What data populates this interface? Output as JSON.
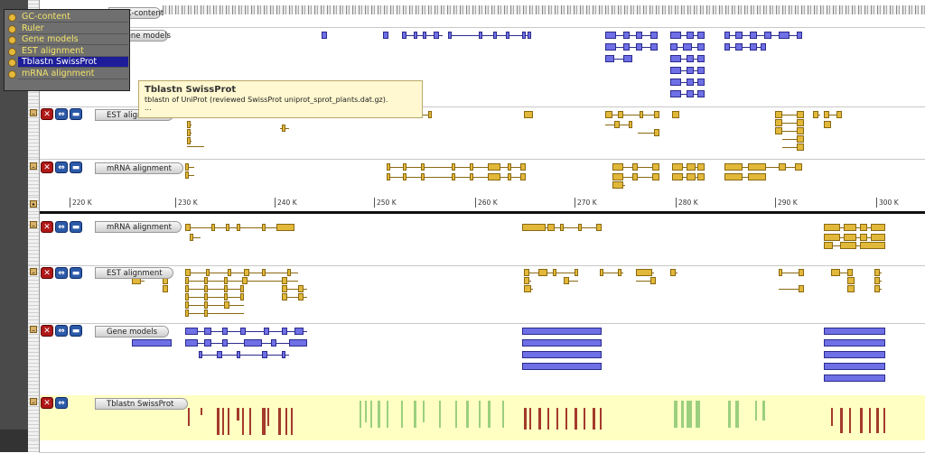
{
  "overlay_menu": {
    "items": [
      {
        "label": "GC-content",
        "active": false
      },
      {
        "label": "Ruler",
        "active": false
      },
      {
        "label": "Gene models",
        "active": false
      },
      {
        "label": "EST alignment",
        "active": false
      },
      {
        "label": "Tblastn SwissProt",
        "active": true
      },
      {
        "label": "mRNA alignment",
        "active": false
      }
    ]
  },
  "tooltip": {
    "title": "Tblastn SwissProt",
    "description": "tblastn of UniProt (reviewed SwissProt uniprot_sprot_plants.dat.gz).",
    "more": "..."
  },
  "top_tracks": {
    "gc_label": "GC-content",
    "gene_models_label": "Gene models",
    "est_label": "EST alignment",
    "mrna_label": "mRNA alignment"
  },
  "ruler": {
    "ticks": [
      "220 K",
      "230 K",
      "240 K",
      "250 K",
      "260 K",
      "270 K",
      "280 K",
      "290 K",
      "300 K"
    ]
  },
  "bottom_tracks": {
    "mrna_label": "mRNA alignment",
    "est_label": "EST alignment",
    "gene_models_label": "Gene models",
    "tblastn_label": "Tblastn SwissProt"
  },
  "icons": {
    "close": "close-icon",
    "expand": "expand-icon",
    "collapse": "collapse-icon",
    "minimize": "minimize-icon",
    "track_dot": "track-dot-icon"
  },
  "colors": {
    "gene_model": "#6f6fe6",
    "est": "#e2b83a",
    "tblastn_bg": "#ffffc4",
    "tblastn_green": "#9bcf7e",
    "tblastn_red": "#a33a2a",
    "menu_text": "#f3e46a",
    "menu_active": "#1d1d9a"
  }
}
